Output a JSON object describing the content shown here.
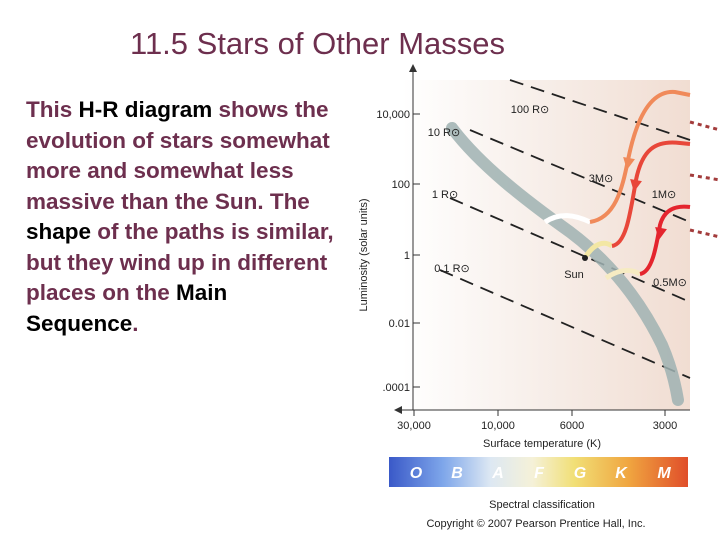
{
  "slide": {
    "title": "11.5 Stars of Other Masses",
    "body": {
      "p1": "This ",
      "h1": "H-R diagram",
      "p2": " shows the evolution of stars somewhat more and somewhat less massive than the Sun. The ",
      "h2": "shape",
      "p3": " of the paths is similar, but they wind up in different places on the ",
      "h3": "Main Sequence",
      "p4": "."
    }
  },
  "diagram": {
    "y_axis_label": "Luminosity (solar units)",
    "y_ticks": [
      "10,000",
      "100",
      "1",
      "0.01",
      ".0001"
    ],
    "x_axis_label": "Surface temperature (K)",
    "x_ticks": [
      "30,000",
      "10,000",
      "6000",
      "3000"
    ],
    "radius_lines": [
      "100 R⊙",
      "10 R⊙",
      "1 R⊙",
      "0.1 R⊙"
    ],
    "tracks": [
      "3M⊙",
      "1M⊙",
      "0.5M⊙"
    ],
    "sun_label": "Sun",
    "spectral": {
      "label": "Spectral classification",
      "classes": [
        "O",
        "B",
        "A",
        "F",
        "G",
        "K",
        "M"
      ]
    },
    "copyright": "Copyright © 2007 Pearson Prentice Hall, Inc."
  }
}
